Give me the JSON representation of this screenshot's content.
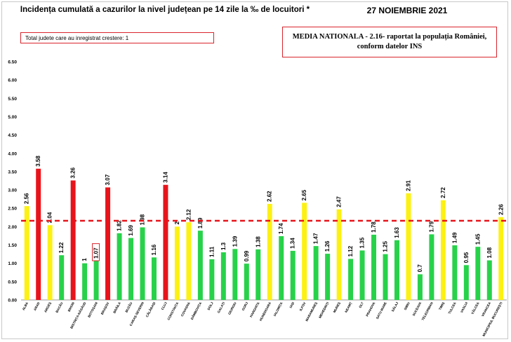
{
  "header": {
    "title": "Incidența cumulată a cazurilor la nivel județean pe 14 zile la ‰ de locuitori *",
    "date": "27 NOIEMBRIE 2021"
  },
  "info_box": {
    "text": "Total judete care au inregistrat crestere: 1"
  },
  "media_box": {
    "line1": "MEDIA NATIONALA - 2.16-  raportat la populația României,",
    "line2": "conform datelor INS"
  },
  "colors": {
    "red": "#e8141b",
    "yellow": "#fcf113",
    "green": "#27d24a",
    "reference_line": "#e8141b",
    "highlight_border": "#d9242b"
  },
  "chart_data": {
    "type": "bar",
    "ylim": [
      0,
      6.5
    ],
    "yticks": [
      "0.00",
      "0.50",
      "1.00",
      "1.50",
      "2.00",
      "2.50",
      "3.00",
      "3.50",
      "4.00",
      "4.50",
      "5.00",
      "5.50",
      "6.00",
      "6.50"
    ],
    "grid": false,
    "reference_line": {
      "value": 2.16,
      "style": "dashed",
      "color": "red"
    },
    "highlighted_label": "1.07",
    "bars": [
      {
        "category": "ALBA",
        "value": 2.56,
        "label": "2.56",
        "color": "yellow"
      },
      {
        "category": "ARAD",
        "value": 3.58,
        "label": "3.58",
        "color": "red"
      },
      {
        "category": "ARGEȘ",
        "value": 2.04,
        "label": "2.04",
        "color": "yellow"
      },
      {
        "category": "BACĂU",
        "value": 1.22,
        "label": "1.22",
        "color": "green"
      },
      {
        "category": "BIHOR",
        "value": 3.26,
        "label": "3.26",
        "color": "red"
      },
      {
        "category": "BISTRIȚA-NĂSĂUD",
        "value": 1.0,
        "label": "1",
        "color": "green"
      },
      {
        "category": "BOTOȘANI",
        "value": 1.07,
        "label": "1.07",
        "color": "green"
      },
      {
        "category": "BRAȘOV",
        "value": 3.07,
        "label": "3.07",
        "color": "red"
      },
      {
        "category": "BRĂILA",
        "value": 1.82,
        "label": "1.82",
        "color": "green"
      },
      {
        "category": "BUZĂU",
        "value": 1.69,
        "label": "1.69",
        "color": "green"
      },
      {
        "category": "CARAȘ-SEVERIN",
        "value": 1.98,
        "label": "1.98",
        "color": "green"
      },
      {
        "category": "CĂLĂRAȘI",
        "value": 1.16,
        "label": "1.16",
        "color": "green"
      },
      {
        "category": "CLUJ",
        "value": 3.14,
        "label": "3.14",
        "color": "red"
      },
      {
        "category": "CONSTANȚA",
        "value": 2.0,
        "label": "2",
        "color": "yellow"
      },
      {
        "category": "COVASNA",
        "value": 2.12,
        "label": "2.12",
        "color": "yellow"
      },
      {
        "category": "DÂMBOVIȚA",
        "value": 1.89,
        "label": "1.89",
        "color": "green"
      },
      {
        "category": "DOLJ",
        "value": 1.11,
        "label": "1.11",
        "color": "green"
      },
      {
        "category": "GALAȚI",
        "value": 1.3,
        "label": "1.3",
        "color": "green"
      },
      {
        "category": "GIURGIU",
        "value": 1.39,
        "label": "1.39",
        "color": "green"
      },
      {
        "category": "GORJ",
        "value": 0.99,
        "label": "0.99",
        "color": "green"
      },
      {
        "category": "HARGHITA",
        "value": 1.38,
        "label": "1.38",
        "color": "green"
      },
      {
        "category": "HUNEDOARA",
        "value": 2.62,
        "label": "2.62",
        "color": "yellow"
      },
      {
        "category": "IALOMIȚA",
        "value": 1.74,
        "label": "1.74",
        "color": "green"
      },
      {
        "category": "IAȘI",
        "value": 1.34,
        "label": "1.34",
        "color": "green"
      },
      {
        "category": "ILFOV",
        "value": 2.65,
        "label": "2.65",
        "color": "yellow"
      },
      {
        "category": "MARAMUREȘ",
        "value": 1.47,
        "label": "1.47",
        "color": "green"
      },
      {
        "category": "MEHEDINȚI",
        "value": 1.26,
        "label": "1.26",
        "color": "green"
      },
      {
        "category": "MUREȘ",
        "value": 2.47,
        "label": "2.47",
        "color": "yellow"
      },
      {
        "category": "NEAMȚ",
        "value": 1.12,
        "label": "1.12",
        "color": "green"
      },
      {
        "category": "OLT",
        "value": 1.35,
        "label": "1.35",
        "color": "green"
      },
      {
        "category": "PRAHOVA",
        "value": 1.78,
        "label": "1.78",
        "color": "green"
      },
      {
        "category": "SATU MARE",
        "value": 1.25,
        "label": "1.25",
        "color": "green"
      },
      {
        "category": "SĂLAJ",
        "value": 1.63,
        "label": "1.63",
        "color": "green"
      },
      {
        "category": "SIBIU",
        "value": 2.91,
        "label": "2.91",
        "color": "yellow"
      },
      {
        "category": "SUCEAVA",
        "value": 0.7,
        "label": "0.7",
        "color": "green"
      },
      {
        "category": "TELEORMAN",
        "value": 1.79,
        "label": "1.79",
        "color": "green"
      },
      {
        "category": "TIMIȘ",
        "value": 2.72,
        "label": "2.72",
        "color": "yellow"
      },
      {
        "category": "TULCEA",
        "value": 1.49,
        "label": "1.49",
        "color": "green"
      },
      {
        "category": "VASLUI",
        "value": 0.95,
        "label": "0.95",
        "color": "green"
      },
      {
        "category": "VÂLCEA",
        "value": 1.45,
        "label": "1.45",
        "color": "green"
      },
      {
        "category": "VRANCEA",
        "value": 1.08,
        "label": "1.08",
        "color": "green"
      },
      {
        "category": "MUNICIPIUL BUCUREȘTI",
        "value": 2.26,
        "label": "2.26",
        "color": "yellow"
      }
    ]
  }
}
